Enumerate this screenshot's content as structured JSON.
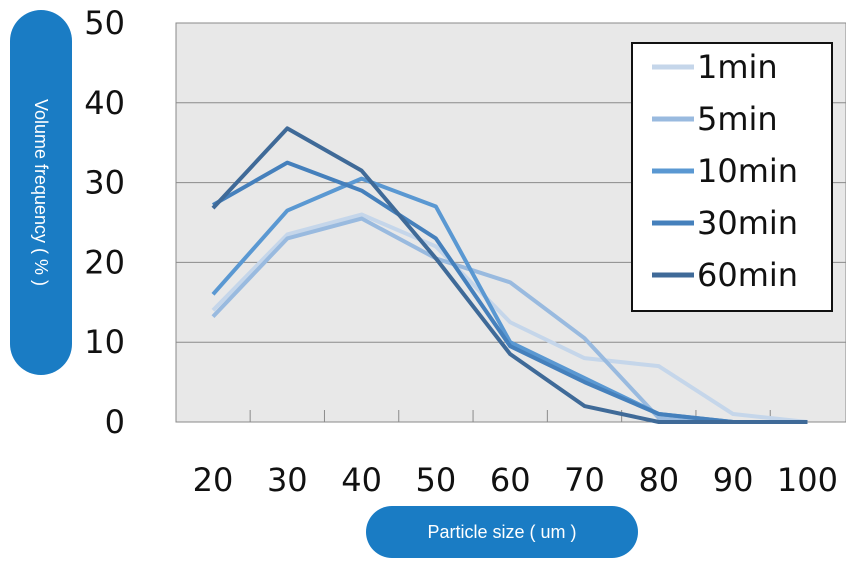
{
  "chart_data": {
    "type": "line",
    "title": "",
    "xlabel": "Particle size ( um )",
    "ylabel": "Volume frequency ( % )",
    "categories": [
      "20",
      "30",
      "40",
      "50",
      "60",
      "70",
      "80",
      "90",
      "100"
    ],
    "yticks": [
      "0",
      "10",
      "20",
      "30",
      "40",
      "50"
    ],
    "ylim": [
      0,
      50
    ],
    "grid": true,
    "legend_position": "top-right",
    "series": [
      {
        "name": "1min",
        "color": "#c5d6ea",
        "values": [
          14.0,
          23.5,
          26.0,
          22.0,
          12.5,
          8.0,
          7.0,
          1.0,
          0.0
        ]
      },
      {
        "name": "5min",
        "color": "#99badf",
        "values": [
          13.2,
          23.0,
          25.5,
          20.5,
          17.5,
          10.5,
          0.5,
          0.0,
          0.0
        ]
      },
      {
        "name": "10min",
        "color": "#5a98d2",
        "values": [
          16.0,
          26.5,
          30.5,
          27.0,
          10.0,
          5.5,
          1.0,
          0.0,
          0.0
        ]
      },
      {
        "name": "30min",
        "color": "#4580bc",
        "values": [
          27.2,
          32.5,
          29.0,
          23.0,
          9.5,
          5.0,
          1.0,
          0.0,
          0.0
        ]
      },
      {
        "name": "60min",
        "color": "#3f6a98",
        "values": [
          26.8,
          36.8,
          31.5,
          20.5,
          8.5,
          2.0,
          0.0,
          0.0,
          0.0
        ]
      }
    ]
  }
}
